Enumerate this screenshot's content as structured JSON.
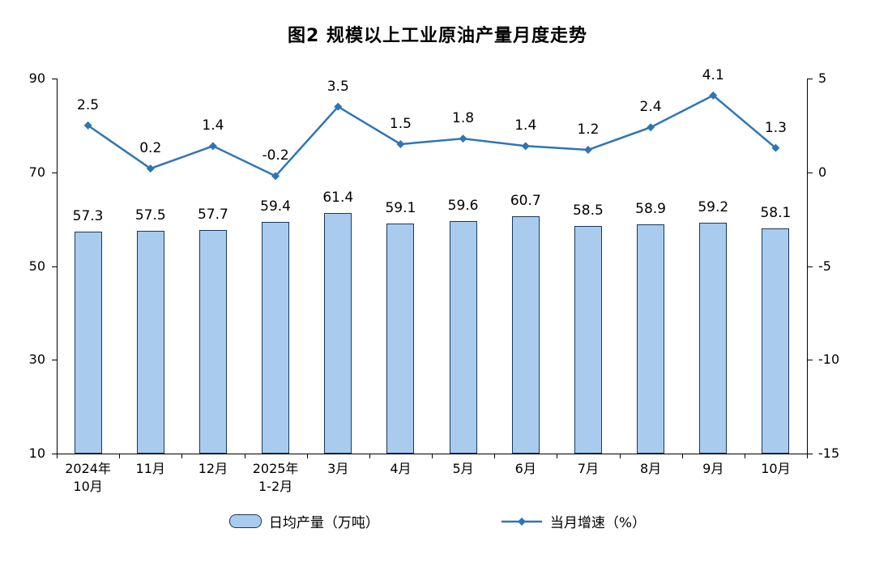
{
  "chart_data": {
    "type": "bar+line",
    "title": "图2 规模以上工业原油产量月度走势",
    "categories": [
      [
        "2024年",
        "10月"
      ],
      [
        "11月"
      ],
      [
        "12月"
      ],
      [
        "2025年",
        "1-2月"
      ],
      [
        "3月"
      ],
      [
        "4月"
      ],
      [
        "5月"
      ],
      [
        "6月"
      ],
      [
        "7月"
      ],
      [
        "8月"
      ],
      [
        "9月"
      ],
      [
        "10月"
      ]
    ],
    "series": [
      {
        "name": "日均产量（万吨）",
        "type": "bar",
        "axis": "left",
        "values": [
          57.3,
          57.5,
          57.7,
          59.4,
          61.4,
          59.1,
          59.6,
          60.7,
          58.5,
          58.9,
          59.2,
          58.1
        ],
        "labels": [
          "57.3",
          "57.5",
          "57.7",
          "59.4",
          "61.4",
          "59.1",
          "59.6",
          "60.7",
          "58.5",
          "58.9",
          "59.2",
          "58.1"
        ]
      },
      {
        "name": "当月增速（%）",
        "type": "line",
        "axis": "right",
        "values": [
          2.5,
          0.2,
          1.4,
          -0.2,
          3.5,
          1.5,
          1.8,
          1.4,
          1.2,
          2.4,
          4.1,
          1.3
        ],
        "labels": [
          "2.5",
          "0.2",
          "1.4",
          "-0.2",
          "3.5",
          "1.5",
          "1.8",
          "1.4",
          "1.2",
          "2.4",
          "4.1",
          "1.3"
        ]
      }
    ],
    "left_axis": {
      "min": 10,
      "max": 90,
      "ticks": [
        90,
        70,
        50,
        30,
        10
      ]
    },
    "right_axis": {
      "min": -15,
      "max": 5,
      "ticks": [
        5,
        0,
        -5,
        -10,
        -15
      ]
    },
    "grid": false,
    "legend_position": "bottom",
    "legend": [
      {
        "label": "日均产量（万吨）",
        "marker": "bar-swatch"
      },
      {
        "label": "当月增速（%）",
        "marker": "line-diamond"
      }
    ],
    "colors": {
      "bar_fill": "#A9CCEE",
      "bar_border": "#17375E",
      "line": "#2E75B6",
      "text": "#000000"
    }
  }
}
